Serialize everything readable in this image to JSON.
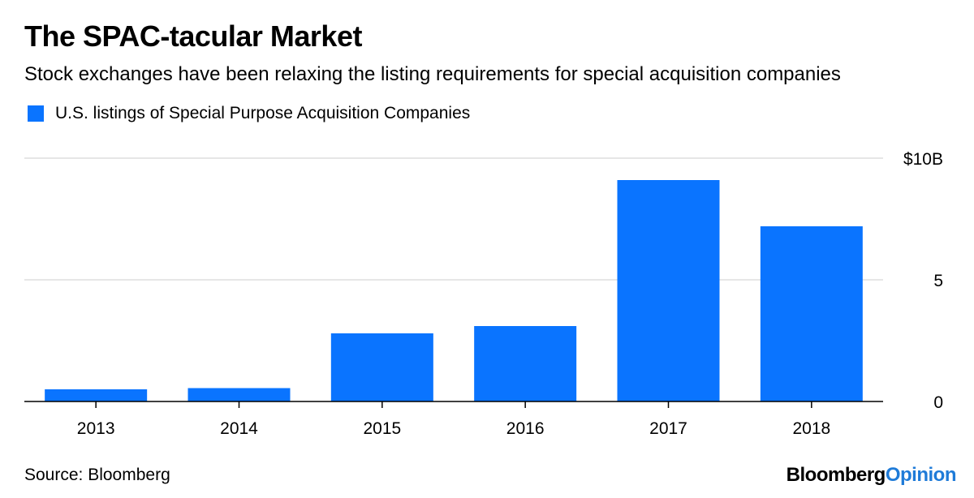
{
  "header": {
    "title": "The SPAC-tacular Market",
    "subtitle": "Stock exchanges have been relaxing the listing requirements for special acquisition companies"
  },
  "footer": {
    "source": "Source: Bloomberg",
    "brand_primary": "Bloomberg",
    "brand_secondary": "Opinion"
  },
  "colors": {
    "bar": "#0a74ff",
    "brand_accent": "#1f7bd8",
    "grid": "#e6e6e6",
    "axis": "#000000"
  },
  "chart_data": {
    "type": "bar",
    "title": "The SPAC-tacular Market",
    "subtitle": "Stock exchanges have been relaxing the listing requirements for special acquisition companies",
    "legend": [
      "U.S. listings of Special Purpose Acquisition Companies"
    ],
    "legend_position": "top-left",
    "categories": [
      "2013",
      "2014",
      "2015",
      "2016",
      "2017",
      "2018"
    ],
    "series": [
      {
        "name": "U.S. listings of Special Purpose Acquisition Companies",
        "values": [
          0.5,
          0.55,
          2.8,
          3.1,
          9.1,
          7.2
        ]
      }
    ],
    "xlabel": "",
    "ylabel": "",
    "unit": "billion USD",
    "ylim": [
      0,
      10
    ],
    "yticks": [
      0,
      5,
      10
    ],
    "ytick_labels": [
      "0",
      "5",
      "$10B"
    ],
    "grid": true,
    "y_axis_side": "right"
  }
}
